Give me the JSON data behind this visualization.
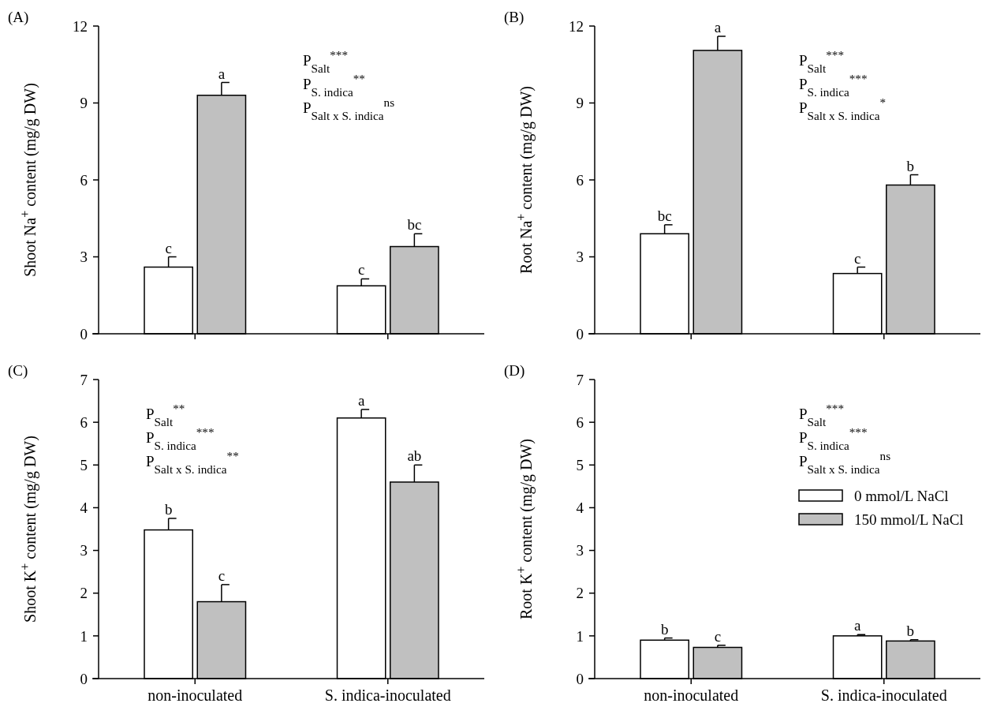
{
  "chart_data": [
    {
      "type": "bar",
      "title": "(A)",
      "ylabel": "Shoot Na$^{+}$ content (mg/g DW)",
      "categories": [
        null,
        null
      ],
      "ylim": [
        0,
        12
      ],
      "yticks": [
        0,
        3,
        6,
        9,
        12
      ],
      "tick_labels": "y",
      "legend": false,
      "series": [
        {
          "color": "#ffffff",
          "values": [
            2.6,
            1.87
          ],
          "errors": [
            0.4,
            0.27
          ],
          "value_labels": [
            "c",
            "c"
          ]
        },
        {
          "color": "#c0c0c0",
          "values": [
            9.3,
            3.4
          ],
          "errors": [
            0.5,
            0.5
          ],
          "value_labels": [
            "a",
            "bc"
          ]
        }
      ],
      "annotations": [
        "P$_{Salt}$$^{***}$",
        "P$_{S. indica}$$^{**}$",
        "P$_{Salt x S. indica}$$^{ns}$"
      ]
    },
    {
      "type": "bar",
      "title": "(B)",
      "ylabel": "Root Na$^{+}$ content (mg/g DW)",
      "categories": [
        null,
        null
      ],
      "ylim": [
        0,
        12
      ],
      "yticks": [
        0,
        3,
        6,
        9,
        12
      ],
      "tick_labels": "y",
      "legend": false,
      "series": [
        {
          "color": "#ffffff",
          "values": [
            3.9,
            2.35
          ],
          "errors": [
            0.35,
            0.25
          ],
          "value_labels": [
            "bc",
            "c"
          ]
        },
        {
          "color": "#c0c0c0",
          "values": [
            11.05,
            5.8
          ],
          "errors": [
            0.55,
            0.4
          ],
          "value_labels": [
            "a",
            "b"
          ]
        }
      ],
      "annotations": [
        "P$_{Salt}$$^{***}$",
        "P$_{S. indica}$$^{***}$",
        "P$_{Salt x S. indica}$$^{*}$"
      ]
    },
    {
      "type": "bar",
      "title": "(C)",
      "ylabel": "Shoot K$^{+}$ content (mg/g DW)",
      "categories": [
        "non-inoculated",
        "S. indica-inoculated"
      ],
      "ylim": [
        0,
        7
      ],
      "yticks": [
        0,
        1,
        2,
        3,
        4,
        5,
        6,
        7
      ],
      "legend": false,
      "series": [
        {
          "color": "#ffffff",
          "values": [
            3.48,
            6.1
          ],
          "errors": [
            0.27,
            0.2
          ],
          "value_labels": [
            "b",
            "a"
          ]
        },
        {
          "color": "#c0c0c0",
          "values": [
            1.8,
            4.6
          ],
          "errors": [
            0.4,
            0.4
          ],
          "value_labels": [
            "c",
            "ab"
          ]
        }
      ],
      "annotations": [
        "P$_{Salt}$$^{**}$",
        "P$_{S. indica}$$^{***}$",
        "P$_{Salt x S. indica}$$^{**}$"
      ]
    },
    {
      "type": "bar",
      "title": "(D)",
      "ylabel": "Root K$^{+}$ content (mg/g DW)",
      "categories": [
        "non-inoculated",
        "S. indica-inoculated"
      ],
      "ylim": [
        0,
        7
      ],
      "yticks": [
        0,
        1,
        2,
        3,
        4,
        5,
        6,
        7
      ],
      "legend": "right",
      "series": [
        {
          "name": "0 mmol/L NaCl",
          "color": "#ffffff",
          "values": [
            0.9,
            1.0
          ],
          "errors": [
            0.05,
            0.03
          ],
          "value_labels": [
            "b",
            "a"
          ]
        },
        {
          "name": "150 mmol/L NaCl",
          "color": "#c0c0c0",
          "values": [
            0.73,
            0.88
          ],
          "errors": [
            0.05,
            0.03
          ],
          "value_labels": [
            "c",
            "b"
          ]
        }
      ],
      "annotations": [
        "P$_{Salt}$$^{***}$",
        "P$_{S. indica}$$^{***}$",
        "P$_{Salt x S. indica}$$^{ns}$"
      ]
    }
  ]
}
